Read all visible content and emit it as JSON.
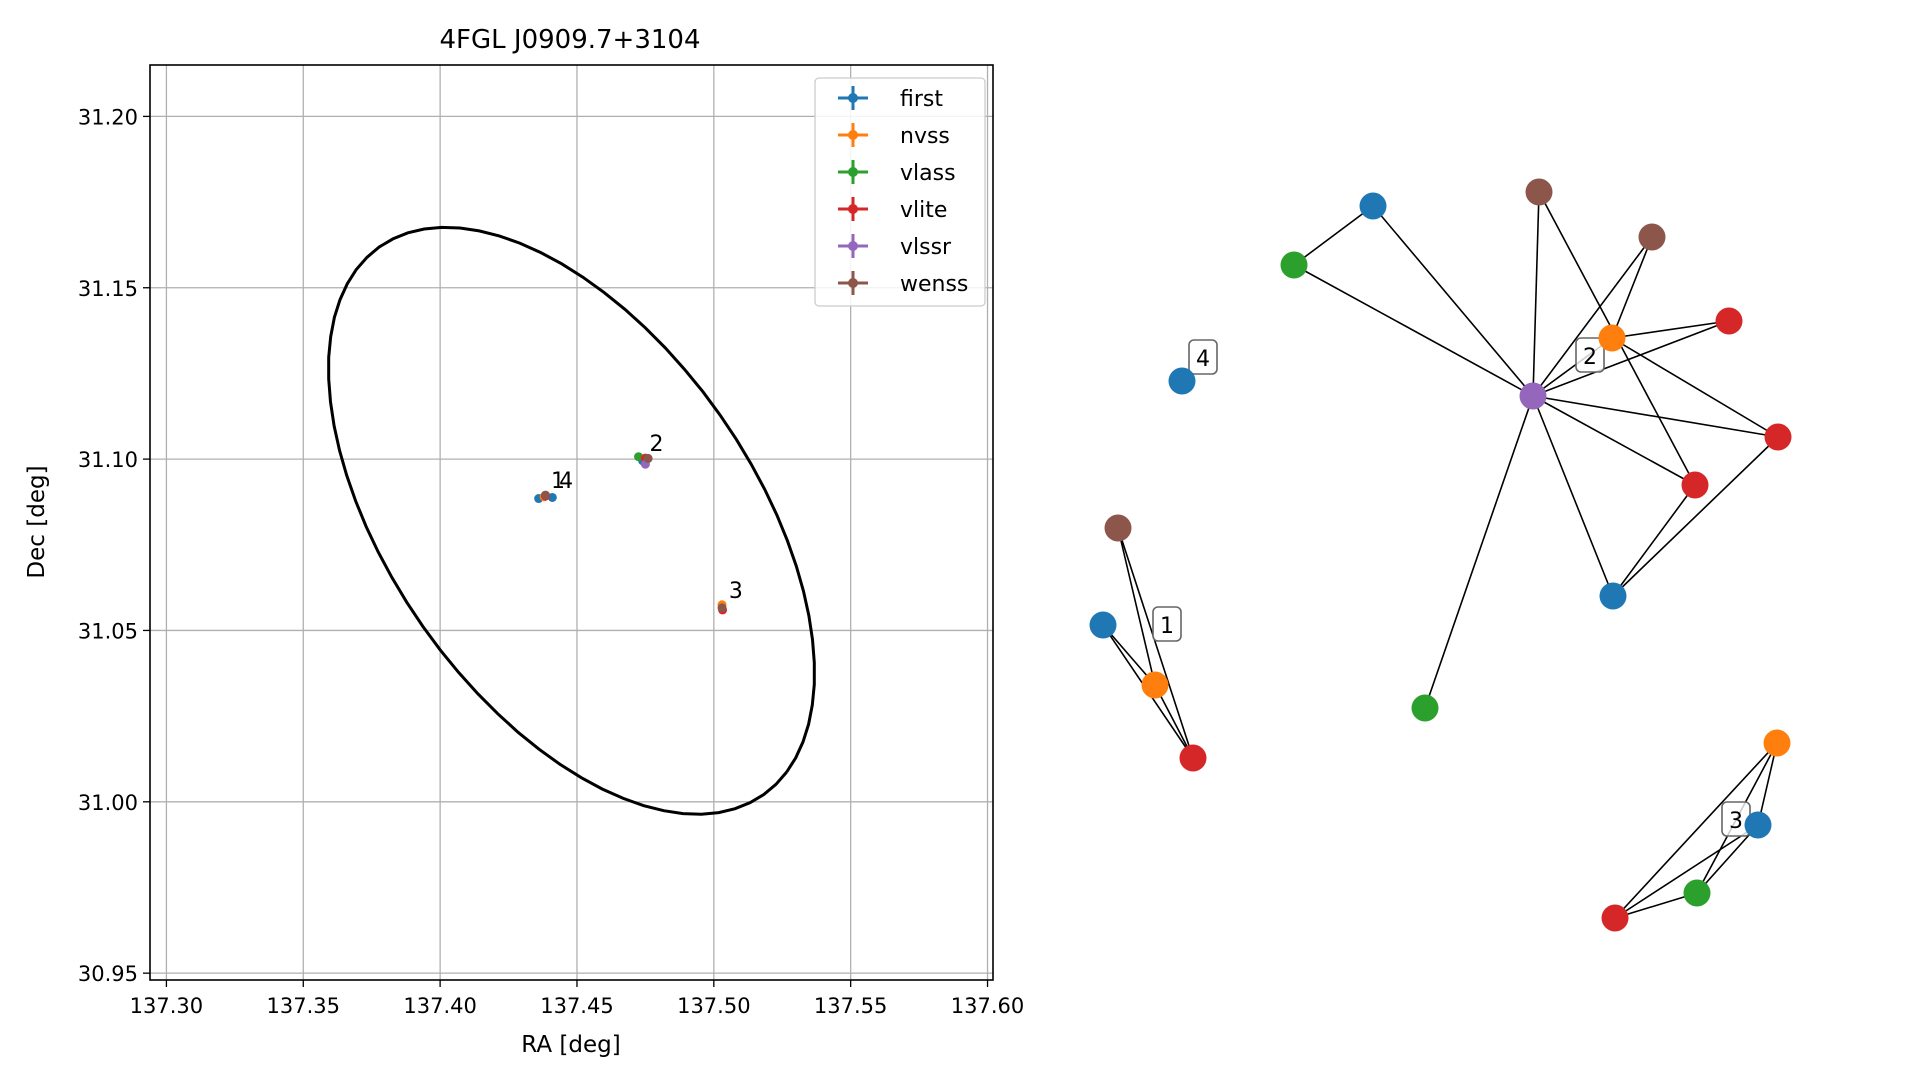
{
  "chart_data": [
    {
      "type": "scatter",
      "title": "4FGL J0909.7+3104",
      "xlabel": "RA [deg]",
      "ylabel": "Dec [deg]",
      "xlim": [
        137.294,
        137.602
      ],
      "ylim": [
        30.948,
        31.215
      ],
      "x_ticks": [
        "137.30",
        "137.35",
        "137.40",
        "137.45",
        "137.50",
        "137.55",
        "137.60"
      ],
      "y_ticks": [
        "30.95",
        "31.00",
        "31.05",
        "31.10",
        "31.15",
        "31.20"
      ],
      "grid": true,
      "legend_position": "top-right",
      "legend": [
        {
          "name": "first",
          "color": "#1f77b4"
        },
        {
          "name": "nvss",
          "color": "#ff7f0e"
        },
        {
          "name": "vlass",
          "color": "#2ca02c"
        },
        {
          "name": "vlite",
          "color": "#d62728"
        },
        {
          "name": "vlssr",
          "color": "#9467bd"
        },
        {
          "name": "wenss",
          "color": "#8c564b"
        }
      ],
      "ellipse": {
        "center_ra": 137.448,
        "center_dec": 31.082,
        "semi_axis_a_deg": 0.1075,
        "semi_axis_b_deg": 0.0605,
        "angle_deg": -43,
        "color": "#000000"
      },
      "series": [
        {
          "name": "first",
          "points": [
            [
              137.436,
              31.0885
            ],
            [
              137.441,
              31.0888
            ],
            [
              137.474,
              31.0995
            ]
          ]
        },
        {
          "name": "nvss",
          "points": [
            [
              137.438,
              31.089
            ],
            [
              137.503,
              31.0575
            ]
          ]
        },
        {
          "name": "vlass",
          "points": [
            [
              137.4725,
              31.1007
            ]
          ]
        },
        {
          "name": "vlite",
          "points": [
            [
              137.4385,
              31.0892
            ],
            [
              137.475,
              31.1003
            ],
            [
              137.5032,
              31.056
            ]
          ]
        },
        {
          "name": "vlssr",
          "points": [
            [
              137.475,
              31.0985
            ]
          ]
        },
        {
          "name": "wenss",
          "points": [
            [
              137.4385,
              31.0895
            ],
            [
              137.476,
              31.1002
            ],
            [
              137.503,
              31.0566
            ]
          ]
        }
      ],
      "annotations": [
        {
          "text": "1",
          "ra": 137.4405,
          "dec": 31.0915
        },
        {
          "text": "4",
          "ra": 137.4435,
          "dec": 31.0915
        },
        {
          "text": "2",
          "ra": 137.4765,
          "dec": 31.1023
        },
        {
          "text": "3",
          "ra": 137.5055,
          "dec": 31.0595
        }
      ]
    },
    {
      "type": "network",
      "groups": [
        "1",
        "2",
        "3",
        "4"
      ],
      "nodes": [
        {
          "id": "n1",
          "catalog": "wenss",
          "color": "#8c564b",
          "group": "1"
        },
        {
          "id": "n2",
          "catalog": "first",
          "color": "#1f77b4",
          "group": "1"
        },
        {
          "id": "n3",
          "catalog": "nvss",
          "color": "#ff7f0e",
          "group": "1"
        },
        {
          "id": "n4",
          "catalog": "vlite",
          "color": "#d62728",
          "group": "1"
        },
        {
          "id": "n5",
          "catalog": "first",
          "color": "#1f77b4",
          "group": "4"
        },
        {
          "id": "n6",
          "catalog": "vlass",
          "color": "#2ca02c",
          "group": "2"
        },
        {
          "id": "n7",
          "catalog": "first",
          "color": "#1f77b4",
          "group": "2"
        },
        {
          "id": "n8",
          "catalog": "wenss",
          "color": "#8c564b",
          "group": "2"
        },
        {
          "id": "n9",
          "catalog": "wenss",
          "color": "#8c564b",
          "group": "2"
        },
        {
          "id": "n10",
          "catalog": "nvss",
          "color": "#ff7f0e",
          "group": "2"
        },
        {
          "id": "n11",
          "catalog": "vlite",
          "color": "#d62728",
          "group": "2"
        },
        {
          "id": "n12",
          "catalog": "vlssr",
          "color": "#9467bd",
          "group": "2"
        },
        {
          "id": "n13",
          "catalog": "vlite",
          "color": "#d62728",
          "group": "2"
        },
        {
          "id": "n14",
          "catalog": "vlite",
          "color": "#d62728",
          "group": "2"
        },
        {
          "id": "n15",
          "catalog": "first",
          "color": "#1f77b4",
          "group": "2"
        },
        {
          "id": "n16",
          "catalog": "vlass",
          "color": "#2ca02c",
          "group": "2"
        },
        {
          "id": "n17",
          "catalog": "nvss",
          "color": "#ff7f0e",
          "group": "3"
        },
        {
          "id": "n18",
          "catalog": "first",
          "color": "#1f77b4",
          "group": "3"
        },
        {
          "id": "n19",
          "catalog": "vlass",
          "color": "#2ca02c",
          "group": "3"
        },
        {
          "id": "n20",
          "catalog": "vlite",
          "color": "#d62728",
          "group": "3"
        }
      ],
      "edges": [
        [
          "n1",
          "n3"
        ],
        [
          "n1",
          "n4"
        ],
        [
          "n2",
          "n3"
        ],
        [
          "n2",
          "n4"
        ],
        [
          "n3",
          "n4"
        ],
        [
          "n6",
          "n7"
        ],
        [
          "n6",
          "n12"
        ],
        [
          "n7",
          "n12"
        ],
        [
          "n8",
          "n12"
        ],
        [
          "n8",
          "n14"
        ],
        [
          "n9",
          "n10"
        ],
        [
          "n9",
          "n12"
        ],
        [
          "n10",
          "n11"
        ],
        [
          "n10",
          "n12"
        ],
        [
          "n10",
          "n13"
        ],
        [
          "n11",
          "n12"
        ],
        [
          "n12",
          "n13"
        ],
        [
          "n12",
          "n14"
        ],
        [
          "n12",
          "n15"
        ],
        [
          "n12",
          "n16"
        ],
        [
          "n13",
          "n15"
        ],
        [
          "n14",
          "n15"
        ],
        [
          "n17",
          "n18"
        ],
        [
          "n17",
          "n19"
        ],
        [
          "n17",
          "n20"
        ],
        [
          "n18",
          "n19"
        ],
        [
          "n18",
          "n20"
        ],
        [
          "n19",
          "n20"
        ]
      ]
    }
  ]
}
